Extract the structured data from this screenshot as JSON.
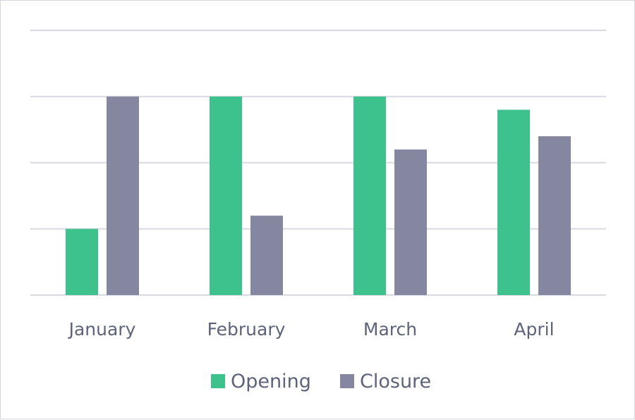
{
  "chart_data": {
    "type": "bar",
    "categories": [
      "January",
      "February",
      "March",
      "April"
    ],
    "series": [
      {
        "name": "Opening",
        "values": [
          1.0,
          3.0,
          3.0,
          2.8
        ],
        "color": "#3ec28d"
      },
      {
        "name": "Closure",
        "values": [
          3.0,
          1.2,
          2.2,
          2.4
        ],
        "color": "#8587a1"
      }
    ],
    "ylim": [
      0,
      4
    ],
    "gridlines": [
      0,
      1,
      2,
      3,
      4
    ],
    "y_tick_labels_shown": false,
    "grid": true,
    "legend": "bottom-center"
  }
}
